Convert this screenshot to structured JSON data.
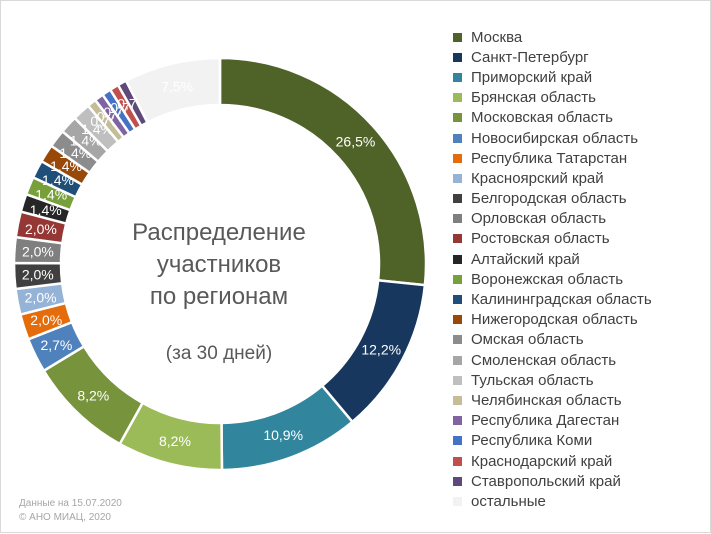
{
  "chart_data": {
    "type": "donut",
    "title_lines": [
      "Распределение",
      "участников",
      "по регионам"
    ],
    "subtitle": "(за 30 дней)",
    "categories": [
      "Москва",
      "Санкт-Петербург",
      "Приморский край",
      "Брянская область",
      "Московская область",
      "Новосибирская область",
      "Республика Татарстан",
      "Красноярский край",
      "Белгородская область",
      "Орловская область",
      "Ростовская область",
      "Алтайский край",
      "Воронежская область",
      "Калининградская область",
      "Нижегородская область",
      "Омская область",
      "Смоленская область",
      "Тульская область",
      "Челябинская область",
      "Республика Дагестан",
      "Республика Коми",
      "Краснодарский край",
      "Ставропольский край",
      "остальные"
    ],
    "values": [
      26.5,
      12.2,
      10.9,
      8.2,
      8.2,
      2.7,
      2.0,
      2.0,
      2.0,
      2.0,
      2.0,
      1.4,
      1.4,
      1.4,
      1.4,
      1.4,
      1.4,
      1.4,
      0.7,
      0.7,
      0.7,
      0.7,
      0.7,
      7.5
    ],
    "labels": [
      "26,5%",
      "12,2%",
      "10,9%",
      "8,2%",
      "8,2%",
      "2,7%",
      "2,0%",
      "2,0%",
      "2,0%",
      "2,0%",
      "2,0%",
      "1,4%",
      "1,4%",
      "1,4%",
      "1,4%",
      "1,4%",
      "1,4%",
      "1,4%",
      "0,7%",
      "0,7%",
      "0,7%",
      "0,7%",
      "0,7%",
      "7,5%"
    ],
    "colors": [
      "#4f6228",
      "#17375e",
      "#31859c",
      "#9bbb59",
      "#77933c",
      "#4f81bd",
      "#e46c0a",
      "#95b3d7",
      "#404040",
      "#7f7f7f",
      "#953735",
      "#262626",
      "#77a03a",
      "#1f4e79",
      "#984807",
      "#8c8c8c",
      "#a6a6a6",
      "#bfbfbf",
      "#c4bd97",
      "#8064a2",
      "#4472c4",
      "#c0504d",
      "#5f497a",
      "#f2f2f2"
    ],
    "label_colors": [
      "#ffffff",
      "#ffffff",
      "#ffffff",
      "#ffffff",
      "#ffffff",
      "#ffffff",
      "#ffffff",
      "#ffffff",
      "#ffffff",
      "#ffffff",
      "#ffffff",
      "#ffffff",
      "#ffffff",
      "#ffffff",
      "#ffffff",
      "#ffffff",
      "#ffffff",
      "#ffffff",
      "#ffffff",
      "#ffffff",
      "#ffffff",
      "#ffffff",
      "#ffffff",
      "#ffffff"
    ],
    "legend_position": "right"
  },
  "footer": {
    "date_line": "Данные на 15.07.2020",
    "copyright_line": "© АНО МИАЦ, 2020"
  }
}
